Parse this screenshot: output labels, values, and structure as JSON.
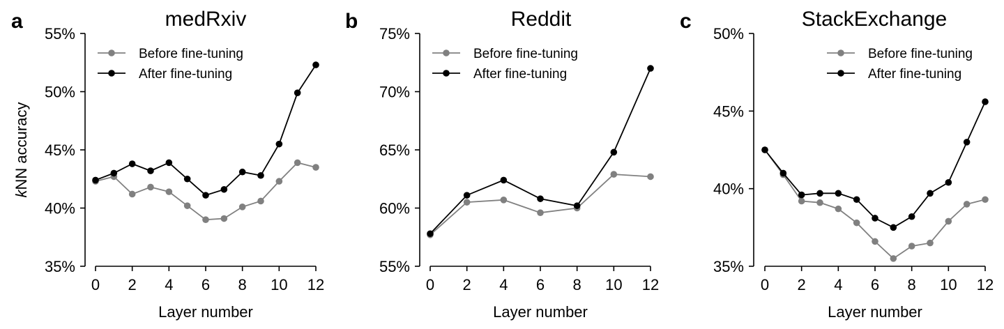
{
  "figure": {
    "ylabel_italic": "k",
    "ylabel_rest": "NN accuracy",
    "series_styles": {
      "before": {
        "color": "#808080"
      },
      "after": {
        "color": "#000000"
      }
    }
  },
  "chart_data": [
    {
      "type": "line",
      "panel": "a",
      "title": "medRxiv",
      "xlabel": "Layer number",
      "ylabel": "kNN accuracy",
      "xlim": [
        0,
        12
      ],
      "ylim": [
        35,
        55
      ],
      "xticks": [
        0,
        2,
        4,
        6,
        8,
        10,
        12
      ],
      "yticks": [
        35,
        40,
        45,
        50,
        55
      ],
      "ytick_labels": [
        "35%",
        "40%",
        "45%",
        "50%",
        "55%"
      ],
      "legend_position": "top-left",
      "series": [
        {
          "name": "Before fine-tuning",
          "style": "before",
          "x": [
            0,
            1,
            2,
            3,
            4,
            5,
            6,
            7,
            8,
            9,
            10,
            11,
            12
          ],
          "values": [
            42.3,
            42.7,
            41.2,
            41.8,
            41.4,
            40.2,
            39.0,
            39.1,
            40.1,
            40.6,
            42.3,
            43.9,
            43.5
          ]
        },
        {
          "name": "After fine-tuning",
          "style": "after",
          "x": [
            0,
            1,
            2,
            3,
            4,
            5,
            6,
            7,
            8,
            9,
            10,
            11,
            12
          ],
          "values": [
            42.4,
            43.0,
            43.8,
            43.2,
            43.9,
            42.5,
            41.1,
            41.6,
            43.1,
            42.8,
            45.5,
            49.9,
            52.3
          ]
        }
      ]
    },
    {
      "type": "line",
      "panel": "b",
      "title": "Reddit",
      "xlabel": "Layer number",
      "ylabel": "",
      "xlim": [
        0,
        12
      ],
      "ylim": [
        55,
        75
      ],
      "xticks": [
        0,
        2,
        4,
        6,
        8,
        10,
        12
      ],
      "yticks": [
        55,
        60,
        65,
        70,
        75
      ],
      "ytick_labels": [
        "55%",
        "60%",
        "65%",
        "70%",
        "75%"
      ],
      "legend_position": "top-left",
      "series": [
        {
          "name": "Before fine-tuning",
          "style": "before",
          "x": [
            0,
            2,
            4,
            6,
            8,
            10,
            12
          ],
          "values": [
            57.7,
            60.5,
            60.7,
            59.6,
            60.0,
            62.9,
            62.7
          ]
        },
        {
          "name": "After fine-tuning",
          "style": "after",
          "x": [
            0,
            2,
            4,
            6,
            8,
            10,
            12
          ],
          "values": [
            57.8,
            61.1,
            62.4,
            60.8,
            60.2,
            64.8,
            72.0
          ]
        }
      ]
    },
    {
      "type": "line",
      "panel": "c",
      "title": "StackExchange",
      "xlabel": "Layer number",
      "ylabel": "",
      "xlim": [
        0,
        12
      ],
      "ylim": [
        35,
        50
      ],
      "xticks": [
        0,
        2,
        4,
        6,
        8,
        10,
        12
      ],
      "yticks": [
        35,
        40,
        45,
        50
      ],
      "ytick_labels": [
        "35%",
        "40%",
        "45%",
        "50%"
      ],
      "legend_position": "top-right",
      "series": [
        {
          "name": "Before fine-tuning",
          "style": "before",
          "x": [
            0,
            1,
            2,
            3,
            4,
            5,
            6,
            7,
            8,
            9,
            10,
            11,
            12
          ],
          "values": [
            42.5,
            40.9,
            39.2,
            39.1,
            38.7,
            37.8,
            36.6,
            35.5,
            36.3,
            36.5,
            37.9,
            39.0,
            39.3
          ]
        },
        {
          "name": "After fine-tuning",
          "style": "after",
          "x": [
            0,
            1,
            2,
            3,
            4,
            5,
            6,
            7,
            8,
            9,
            10,
            11,
            12
          ],
          "values": [
            42.5,
            41.0,
            39.6,
            39.7,
            39.7,
            39.3,
            38.1,
            37.5,
            38.2,
            39.7,
            40.4,
            43.0,
            45.6
          ]
        }
      ]
    }
  ]
}
